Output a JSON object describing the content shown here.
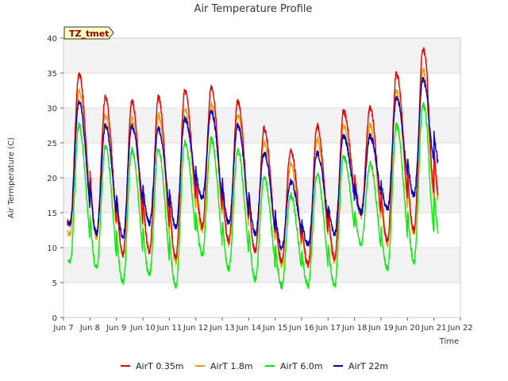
{
  "chart_data": {
    "type": "line",
    "title": "Air Temperature Profile",
    "xlabel": "Time",
    "ylabel": "Air Termperature (C)",
    "ylim": [
      0,
      40
    ],
    "xlim": [
      "Jun 7",
      "Jun 22"
    ],
    "x_ticks": [
      "Jun 7",
      "Jun 8",
      "Jun 9",
      "Jun 10",
      "Jun 11",
      "Jun 12",
      "Jun 13",
      "Jun 14",
      "Jun 15",
      "Jun 16",
      "Jun 17",
      "Jun 18",
      "Jun 19",
      "Jun 20",
      "Jun 21",
      "Jun 22"
    ],
    "y_ticks": [
      0,
      5,
      10,
      15,
      20,
      25,
      30,
      35,
      40
    ],
    "grid": "horizontal bands",
    "legend_position": "bottom",
    "annotation": "TZ_tmet",
    "daily_days": [
      "Jun 7",
      "Jun 8",
      "Jun 9",
      "Jun 10",
      "Jun 11",
      "Jun 12",
      "Jun 13",
      "Jun 14",
      "Jun 15",
      "Jun 16",
      "Jun 17",
      "Jun 18",
      "Jun 19",
      "Jun 20",
      "Jun 21"
    ],
    "series": [
      {
        "name": "AirT 0.35m",
        "color": "#ee0000",
        "daily_min": [
          13.5,
          12.0,
          9.0,
          9.5,
          8.5,
          13.0,
          11.0,
          9.5,
          8.0,
          7.5,
          8.5,
          15.0,
          11.0,
          12.5,
          16.0
        ],
        "daily_max": [
          35.0,
          31.5,
          31.0,
          31.5,
          32.5,
          33.0,
          31.0,
          27.0,
          24.0,
          27.5,
          29.5,
          30.0,
          35.0,
          38.5,
          16.0
        ]
      },
      {
        "name": "AirT 1.8m",
        "color": "#f5a000",
        "daily_min": [
          12.0,
          11.5,
          9.0,
          9.5,
          8.0,
          12.5,
          10.5,
          9.5,
          7.5,
          7.5,
          8.0,
          14.5,
          10.5,
          12.0,
          15.5
        ],
        "daily_max": [
          32.5,
          29.0,
          28.5,
          29.0,
          30.0,
          30.5,
          29.0,
          25.0,
          22.0,
          25.5,
          27.5,
          27.5,
          32.5,
          35.5,
          15.5
        ]
      },
      {
        "name": "AirT 6.0m",
        "color": "#00ee00",
        "daily_min": [
          8.0,
          7.0,
          5.0,
          6.0,
          4.5,
          9.0,
          7.0,
          5.5,
          4.5,
          4.5,
          4.5,
          10.5,
          7.0,
          8.0,
          11.0
        ],
        "daily_max": [
          27.5,
          24.5,
          24.0,
          24.0,
          25.0,
          25.5,
          24.0,
          20.0,
          17.5,
          20.5,
          23.0,
          22.0,
          27.5,
          30.5,
          11.0
        ]
      },
      {
        "name": "AirT 22m",
        "color": "#0000cc",
        "daily_min": [
          13.5,
          12.0,
          11.5,
          13.5,
          13.0,
          17.0,
          13.5,
          12.0,
          10.0,
          10.5,
          12.0,
          15.0,
          15.5,
          17.5,
          21.5
        ],
        "daily_max": [
          31.0,
          27.5,
          27.5,
          27.0,
          28.5,
          29.5,
          27.5,
          23.5,
          19.5,
          23.5,
          26.0,
          26.0,
          31.5,
          34.0,
          21.5
        ]
      }
    ]
  }
}
